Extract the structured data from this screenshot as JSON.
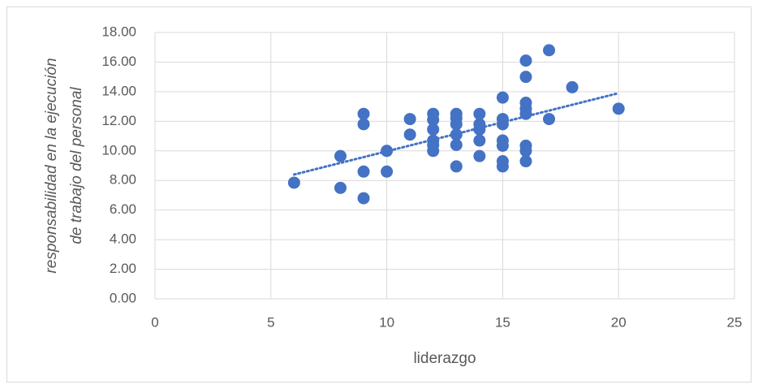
{
  "chart_data": {
    "type": "scatter",
    "xlabel": "liderazgo",
    "ylabel": [
      "responsabilidad en la ejecución",
      "de trabajo del personal"
    ],
    "series": [
      {
        "color": "#4472c4",
        "x": [
          6,
          8,
          8,
          9,
          9,
          9,
          9,
          10,
          10,
          11,
          11,
          12,
          12,
          12,
          12,
          12,
          12,
          13,
          13,
          13,
          13,
          13,
          13,
          14,
          14,
          14,
          14,
          14,
          15,
          15,
          15,
          15,
          15,
          15,
          15,
          16,
          16,
          16,
          16,
          16,
          16,
          16,
          16,
          17,
          17,
          18,
          20
        ],
        "values": [
          7.85,
          9.65,
          7.5,
          12.5,
          11.8,
          8.6,
          6.8,
          10.0,
          8.6,
          12.15,
          11.1,
          12.5,
          12.1,
          11.45,
          10.7,
          10.4,
          10.0,
          12.5,
          12.2,
          11.8,
          11.1,
          10.4,
          8.95,
          12.5,
          11.8,
          11.45,
          10.7,
          9.65,
          13.6,
          12.15,
          11.8,
          10.7,
          10.35,
          9.3,
          8.95,
          16.1,
          15.0,
          13.25,
          12.85,
          12.5,
          10.35,
          10.0,
          9.3,
          16.8,
          12.15,
          14.3,
          12.85
        ]
      }
    ],
    "trendline": {
      "x": [
        6,
        20
      ],
      "values": [
        8.4,
        13.9
      ],
      "color": "#4472c4"
    },
    "xlim": [
      0,
      25
    ],
    "xticks": [
      0,
      5,
      10,
      15,
      20,
      25
    ],
    "ylim": [
      0,
      18
    ],
    "yticks": [
      {
        "value": 0,
        "label": "0.00"
      },
      {
        "value": 2,
        "label": "2.00"
      },
      {
        "value": 4,
        "label": "4.00"
      },
      {
        "value": 6,
        "label": "6.00"
      },
      {
        "value": 8,
        "label": "8.00"
      },
      {
        "value": 10,
        "label": "10.00"
      },
      {
        "value": 12,
        "label": "12.00"
      },
      {
        "value": 14,
        "label": "14.00"
      },
      {
        "value": 16,
        "label": "16.00"
      },
      {
        "value": 18,
        "label": "18.00"
      }
    ],
    "grid": true
  }
}
